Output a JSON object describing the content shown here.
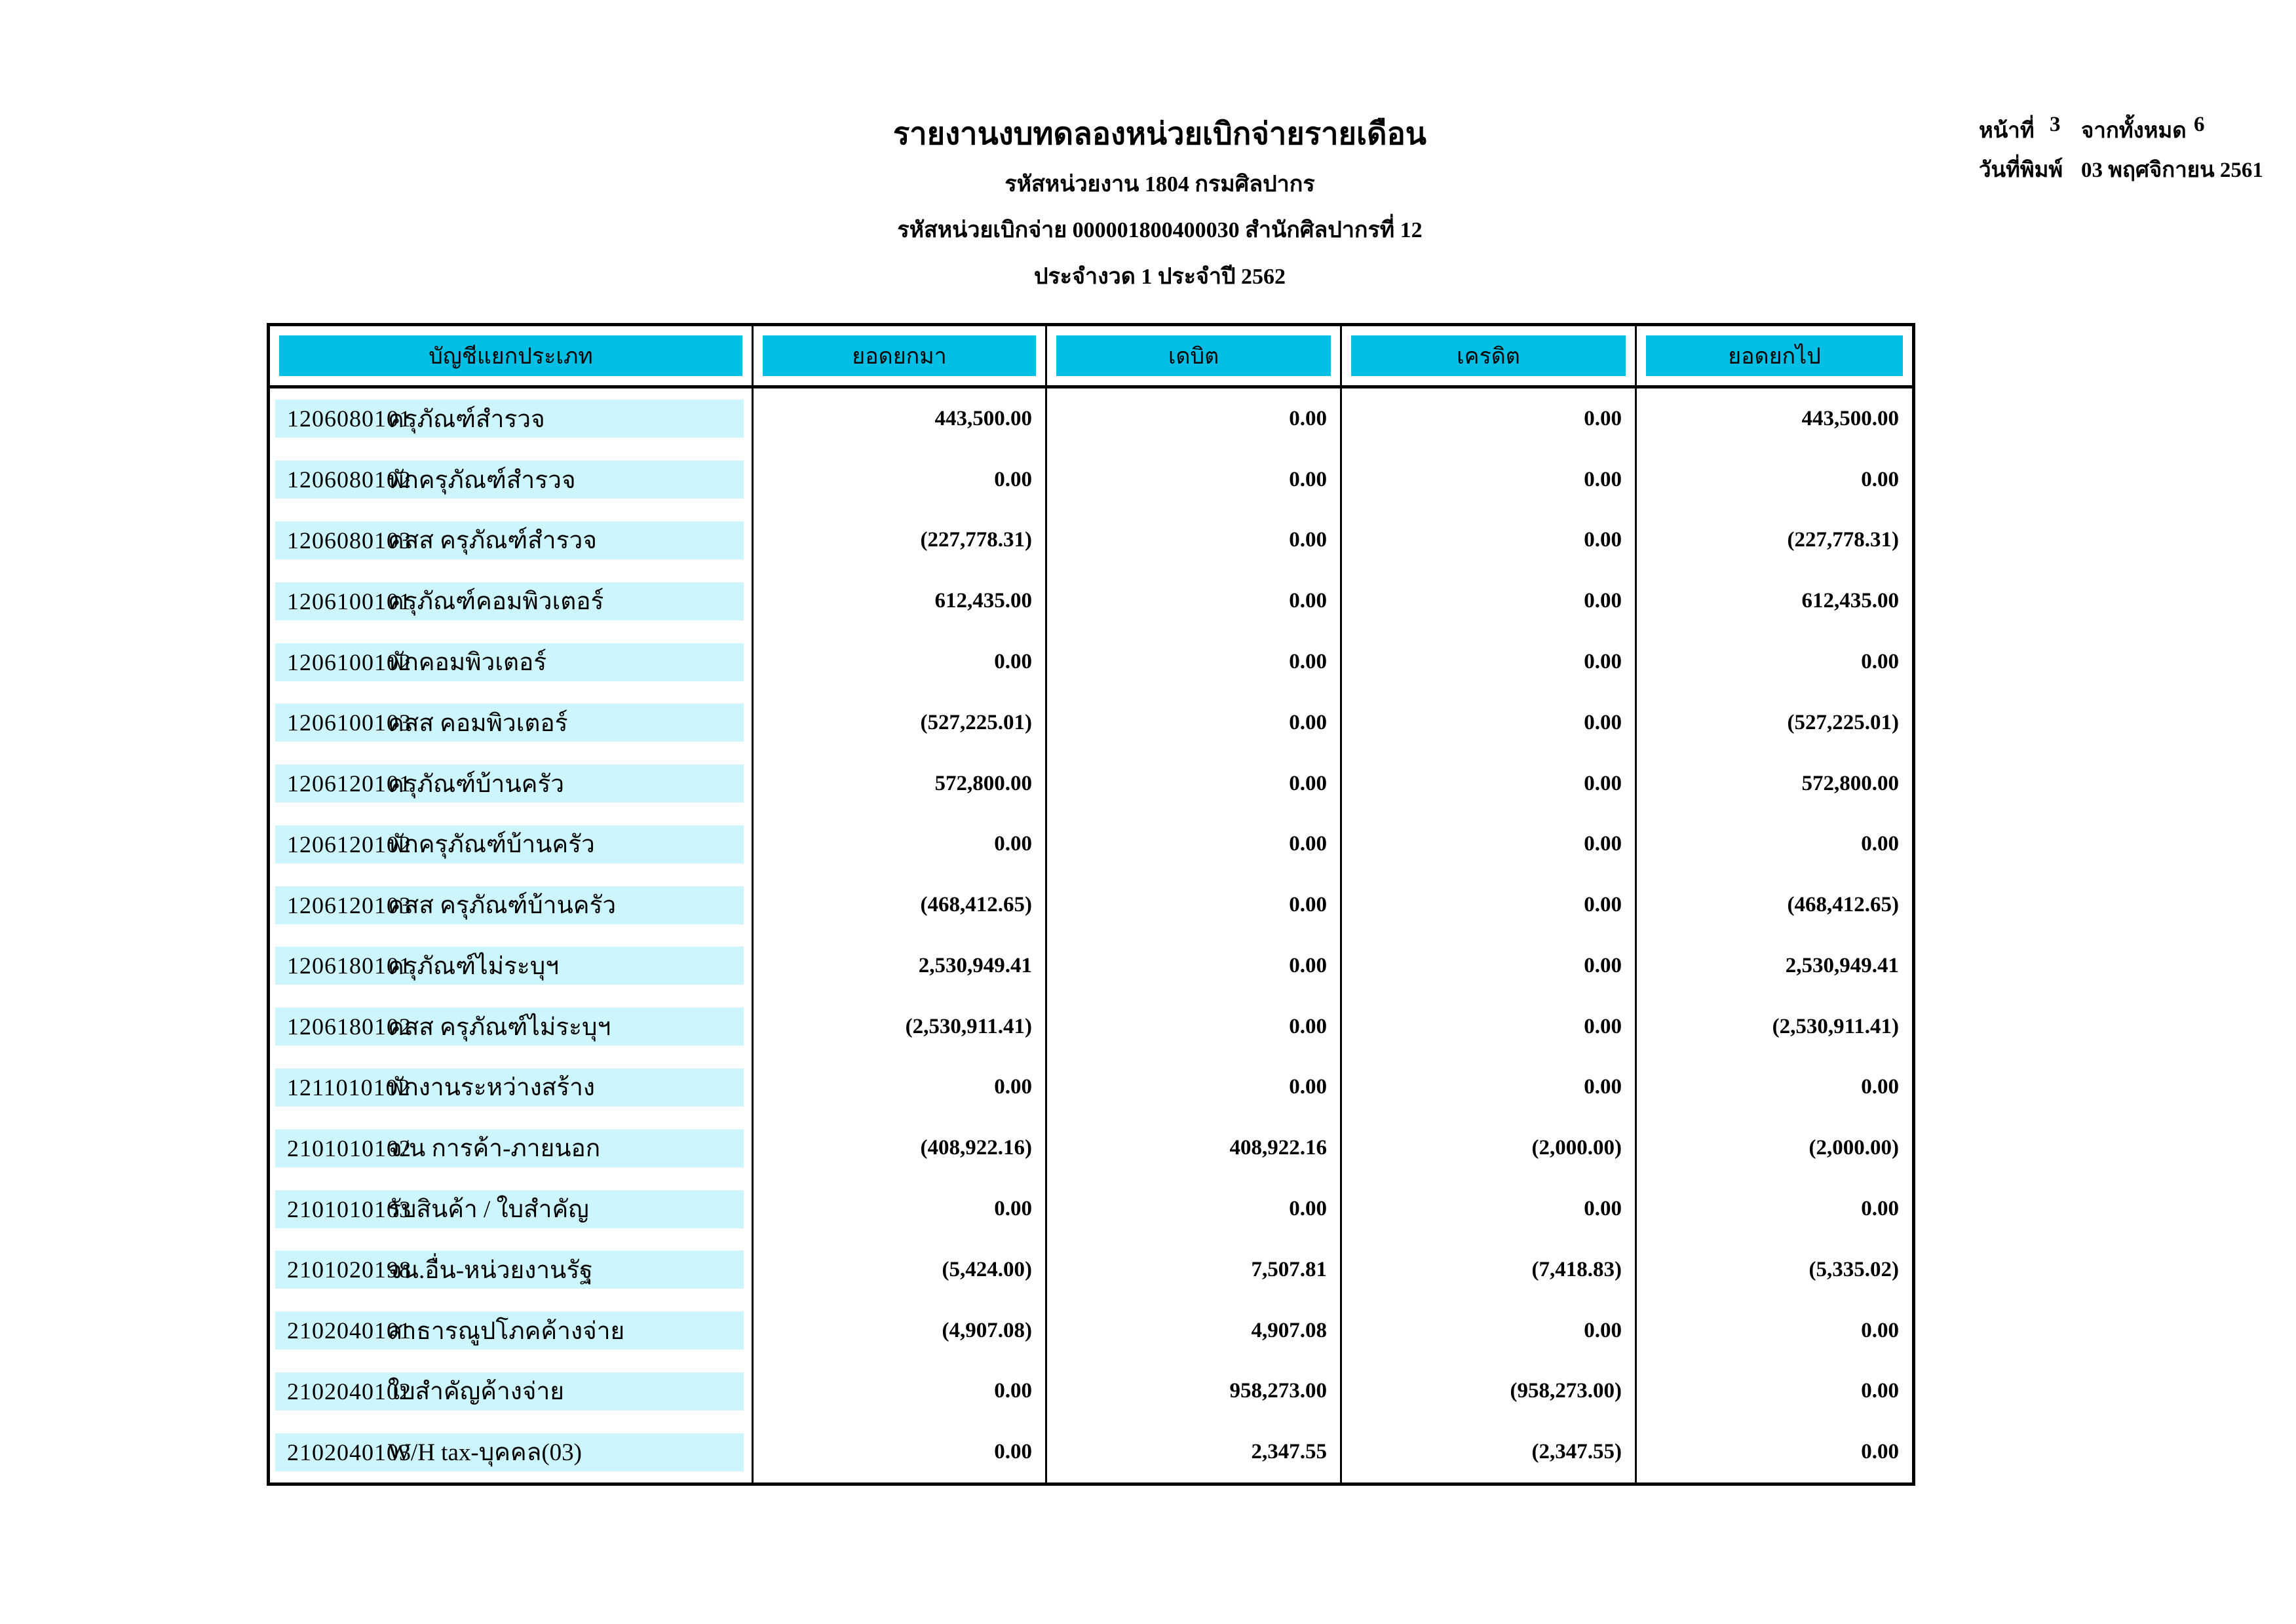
{
  "report": {
    "title": "รายงานงบทดลองหน่วยเบิกจ่ายรายเดือน",
    "agency_line": "รหัสหน่วยงาน 1804 กรมศิลปากร",
    "disbursement_line": "รหัสหน่วยเบิกจ่าย 000001800400030 สำนักศิลปากรที่ 12",
    "period_line": "ประจำงวด 1 ประจำปี 2562"
  },
  "page_info": {
    "page_label": "หน้าที่",
    "page_number": "3",
    "total_label": "จากทั้งหมด",
    "total_pages": "6",
    "print_date_label": "วันที่พิมพ์",
    "print_date": "03 พฤศจิกายน 2561"
  },
  "table": {
    "columns": [
      "บัญชีแยกประเภท",
      "ยอดยกมา",
      "เดบิต",
      "เครดิต",
      "ยอดยกไป"
    ],
    "rows": [
      {
        "code": "1206080101",
        "name": "ครุภัณฑ์สำรวจ",
        "opening": "443,500.00",
        "debit": "0.00",
        "credit": "0.00",
        "closing": "443,500.00"
      },
      {
        "code": "1206080102",
        "name": "พักครุภัณฑ์สำรวจ",
        "opening": "0.00",
        "debit": "0.00",
        "credit": "0.00",
        "closing": "0.00"
      },
      {
        "code": "1206080103",
        "name": "คสส ครุภัณฑ์สำรวจ",
        "opening": "(227,778.31)",
        "debit": "0.00",
        "credit": "0.00",
        "closing": "(227,778.31)"
      },
      {
        "code": "1206100101",
        "name": "ครุภัณฑ์คอมพิวเตอร์",
        "opening": "612,435.00",
        "debit": "0.00",
        "credit": "0.00",
        "closing": "612,435.00"
      },
      {
        "code": "1206100102",
        "name": "พักคอมพิวเตอร์",
        "opening": "0.00",
        "debit": "0.00",
        "credit": "0.00",
        "closing": "0.00"
      },
      {
        "code": "1206100103",
        "name": "คสส คอมพิวเตอร์",
        "opening": "(527,225.01)",
        "debit": "0.00",
        "credit": "0.00",
        "closing": "(527,225.01)"
      },
      {
        "code": "1206120101",
        "name": "ครุภัณฑ์บ้านครัว",
        "opening": "572,800.00",
        "debit": "0.00",
        "credit": "0.00",
        "closing": "572,800.00"
      },
      {
        "code": "1206120102",
        "name": "พักครุภัณฑ์บ้านครัว",
        "opening": "0.00",
        "debit": "0.00",
        "credit": "0.00",
        "closing": "0.00"
      },
      {
        "code": "1206120103",
        "name": "คสส ครุภัณฑ์บ้านครัว",
        "opening": "(468,412.65)",
        "debit": "0.00",
        "credit": "0.00",
        "closing": "(468,412.65)"
      },
      {
        "code": "1206180101",
        "name": "ครุภัณฑ์ไม่ระบุฯ",
        "opening": "2,530,949.41",
        "debit": "0.00",
        "credit": "0.00",
        "closing": "2,530,949.41"
      },
      {
        "code": "1206180102",
        "name": "คสส ครุภัณฑ์ไม่ระบุฯ",
        "opening": "(2,530,911.41)",
        "debit": "0.00",
        "credit": "0.00",
        "closing": "(2,530,911.41)"
      },
      {
        "code": "1211010102",
        "name": "พักงานระหว่างสร้าง",
        "opening": "0.00",
        "debit": "0.00",
        "credit": "0.00",
        "closing": "0.00"
      },
      {
        "code": "2101010102",
        "name": "จ/น การค้า-ภายนอก",
        "opening": "(408,922.16)",
        "debit": "408,922.16",
        "credit": "(2,000.00)",
        "closing": "(2,000.00)"
      },
      {
        "code": "2101010103",
        "name": "รับสินค้า / ใบสำคัญ",
        "opening": "0.00",
        "debit": "0.00",
        "credit": "0.00",
        "closing": "0.00"
      },
      {
        "code": "2101020198",
        "name": "จน.อื่น-หน่วยงานรัฐ",
        "opening": "(5,424.00)",
        "debit": "7,507.81",
        "credit": "(7,418.83)",
        "closing": "(5,335.02)"
      },
      {
        "code": "2102040101",
        "name": "สาธารณูปโภคค้างจ่าย",
        "opening": "(4,907.08)",
        "debit": "4,907.08",
        "credit": "0.00",
        "closing": "0.00"
      },
      {
        "code": "2102040102",
        "name": "ใบสำคัญค้างจ่าย",
        "opening": "0.00",
        "debit": "958,273.00",
        "credit": "(958,273.00)",
        "closing": "0.00"
      },
      {
        "code": "2102040103",
        "name": "W/H tax-บุคคล(03)",
        "opening": "0.00",
        "debit": "2,347.55",
        "credit": "(2,347.55)",
        "closing": "0.00"
      }
    ]
  },
  "colors": {
    "header_fill": "#00bee4",
    "row_fill": "#cdf5fc",
    "border": "#000000"
  }
}
